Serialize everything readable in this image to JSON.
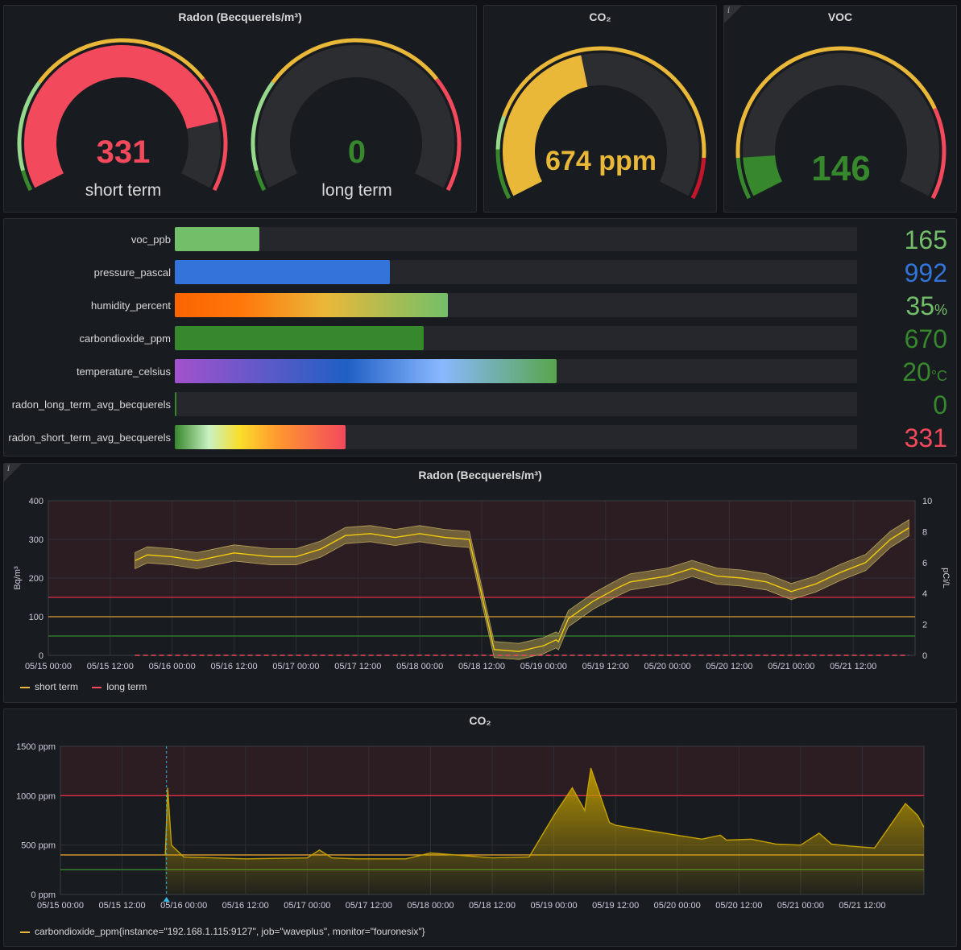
{
  "radon_gauge": {
    "title": "Radon (Becquerels/m³)",
    "short": {
      "value": "331",
      "label": "short term",
      "fraction": 0.83,
      "color": "#f2495c"
    },
    "long": {
      "value": "0",
      "label": "long term",
      "fraction": 0.0,
      "color": "#37872d"
    }
  },
  "co2_gauge": {
    "title": "CO₂",
    "value": "674 ppm",
    "fraction": 0.45,
    "color": "#eab839"
  },
  "voc_gauge": {
    "title": "VOC",
    "value": "146",
    "fraction": 0.1,
    "color": "#37872d"
  },
  "bars": [
    {
      "name": "voc_ppb",
      "value": "165",
      "unit": "",
      "fraction": 0.124,
      "color": "#73bf69"
    },
    {
      "name": "pressure_pascal",
      "value": "992",
      "unit": "",
      "fraction": 0.315,
      "color": "#3274d9"
    },
    {
      "name": "humidity_percent",
      "value": "35",
      "unit": "%",
      "fraction": 0.4,
      "color": "#73bf69"
    },
    {
      "name": "carbondioxide_ppm",
      "value": "670",
      "unit": "",
      "fraction": 0.365,
      "color": "#37872d"
    },
    {
      "name": "temperature_celsius",
      "value": "20",
      "unit": "°C",
      "fraction": 0.56,
      "color": "#37872d"
    },
    {
      "name": "radon_long_term_avg_becquerels",
      "value": "0",
      "unit": "",
      "fraction": 0.002,
      "color": "#37872d"
    },
    {
      "name": "radon_short_term_avg_becquerels",
      "value": "331",
      "unit": "",
      "fraction": 0.25,
      "color": "#f2495c"
    }
  ],
  "chart_data": [
    {
      "type": "line",
      "title": "Radon (Becquerels/m³)",
      "ylabel": "Bq/m³",
      "y2label": "pCi/L",
      "ylim": [
        0,
        400
      ],
      "y2lim": [
        0,
        10
      ],
      "yticks": [
        "0",
        "100",
        "200",
        "300",
        "400"
      ],
      "y2ticks": [
        "0",
        "2",
        "4",
        "6",
        "8",
        "10"
      ],
      "xlabels": [
        "05/15 00:00",
        "05/15 12:00",
        "05/16 00:00",
        "05/16 12:00",
        "05/17 00:00",
        "05/17 12:00",
        "05/18 00:00",
        "05/18 12:00",
        "05/19 00:00",
        "05/19 12:00",
        "05/20 00:00",
        "05/20 12:00",
        "05/21 00:00",
        "05/21 12:00"
      ],
      "thresholds": [
        {
          "value": 150,
          "color": "#e02f44"
        },
        {
          "value": 100,
          "color": "#e0a030"
        },
        {
          "value": 50,
          "color": "#37872d"
        }
      ],
      "series": [
        {
          "name": "short term",
          "color": "#f2cc0c",
          "x": [
            0.7,
            0.8,
            1.0,
            1.2,
            1.5,
            1.8,
            2.0,
            2.2,
            2.4,
            2.6,
            2.8,
            3.0,
            3.2,
            3.4,
            3.6,
            3.8,
            4.0,
            4.1,
            4.12,
            4.2,
            4.4,
            4.6,
            4.7,
            4.8,
            5.0,
            5.2,
            5.4,
            5.6,
            5.8,
            6.0,
            6.2,
            6.4,
            6.6,
            6.8,
            6.95
          ],
          "y": [
            245,
            260,
            255,
            245,
            265,
            255,
            255,
            275,
            310,
            315,
            305,
            315,
            305,
            300,
            15,
            10,
            25,
            40,
            35,
            95,
            140,
            175,
            190,
            195,
            205,
            225,
            205,
            200,
            190,
            165,
            185,
            215,
            240,
            300,
            330
          ]
        },
        {
          "name": "long term",
          "color": "#f2495c",
          "x": [
            0.7,
            6.95
          ],
          "y": [
            0,
            0
          ]
        }
      ]
    },
    {
      "type": "area",
      "title": "CO₂",
      "ylim": [
        0,
        1500
      ],
      "yticks": [
        "0 ppm",
        "500 ppm",
        "1000 ppm",
        "1500 ppm"
      ],
      "xlabels": [
        "05/15 00:00",
        "05/15 12:00",
        "05/16 00:00",
        "05/16 12:00",
        "05/17 00:00",
        "05/17 12:00",
        "05/18 00:00",
        "05/18 12:00",
        "05/19 00:00",
        "05/19 12:00",
        "05/20 00:00",
        "05/20 12:00",
        "05/21 00:00",
        "05/21 12:00"
      ],
      "thresholds": [
        {
          "value": 1000,
          "color": "#e02f44"
        },
        {
          "value": 400,
          "color": "#e0a030"
        },
        {
          "value": 250,
          "color": "#37872d"
        }
      ],
      "series": [
        {
          "name": "carbondioxide_ppm{instance=\"192.168.1.115:9127\", job=\"waveplus\", monitor=\"fouronesix\"}",
          "color": "#c4a000",
          "x": [
            0.85,
            0.87,
            0.9,
            1.0,
            1.5,
            2.0,
            2.1,
            2.2,
            2.4,
            2.8,
            3.0,
            3.5,
            3.8,
            4.0,
            4.15,
            4.25,
            4.3,
            4.45,
            4.5,
            4.6,
            4.8,
            5.0,
            5.2,
            5.35,
            5.4,
            5.6,
            5.8,
            6.0,
            6.15,
            6.25,
            6.4,
            6.6,
            6.85,
            6.95,
            7.0
          ],
          "y": [
            400,
            1080,
            500,
            380,
            360,
            370,
            450,
            370,
            360,
            360,
            420,
            370,
            380,
            800,
            1080,
            850,
            1280,
            730,
            700,
            680,
            640,
            600,
            560,
            600,
            550,
            560,
            510,
            500,
            620,
            510,
            490,
            470,
            920,
            800,
            680
          ]
        }
      ]
    }
  ]
}
